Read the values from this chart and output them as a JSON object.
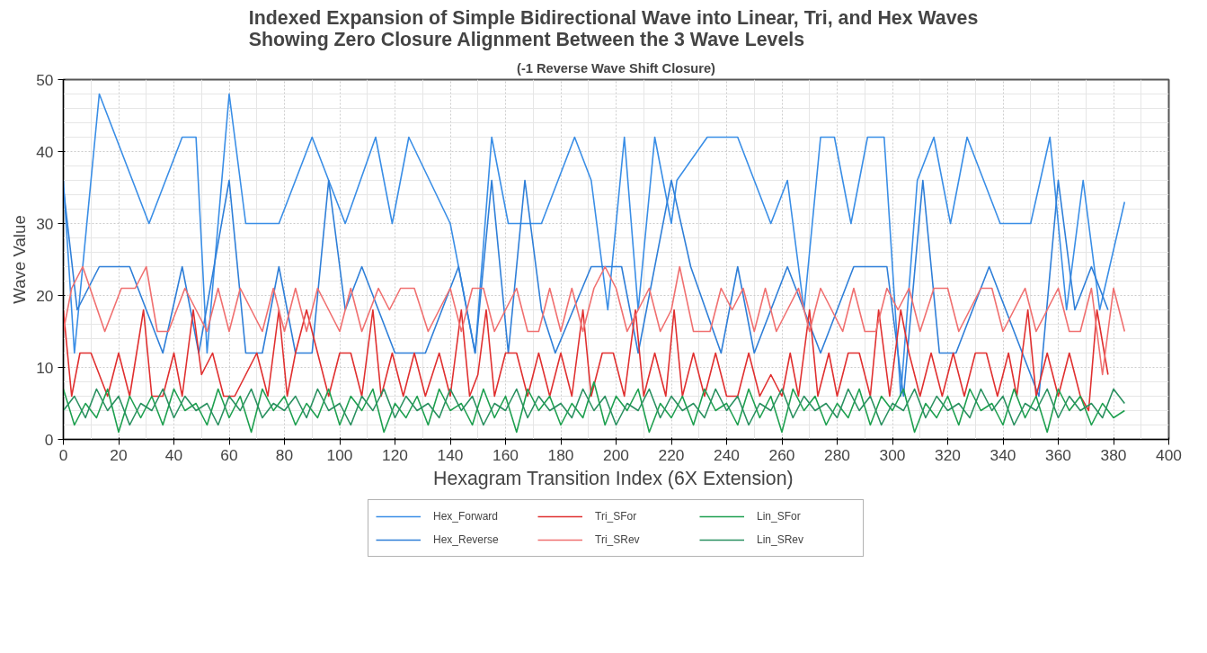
{
  "chart_data": {
    "type": "line",
    "title": "Indexed Expansion of Simple Bidirectional Wave into Linear, Tri, and Hex  Waves\nShowing Zero Closure Alignment Between the 3 Wave Levels",
    "subtitle": "(-1 Reverse Wave Shift Closure)",
    "xlabel": "Hexagram Transition Index  (6X Extension)",
    "ylabel": "Wave Value",
    "xlim": [
      0,
      400
    ],
    "xticks": [
      0,
      20,
      40,
      60,
      80,
      100,
      120,
      140,
      160,
      180,
      200,
      220,
      240,
      260,
      280,
      300,
      320,
      340,
      360,
      380,
      400
    ],
    "ylim": [
      0,
      50
    ],
    "yticks": [
      0,
      10,
      20,
      30,
      40,
      50
    ],
    "grid": true,
    "legend": "bottom",
    "line_style": "solid",
    "series": [
      {
        "name": "Hex_Forward",
        "color": "#3a8ee6",
        "x": [
          0,
          4,
          13,
          31,
          43,
          48,
          52,
          60,
          66,
          78,
          90,
          102,
          113,
          119,
          125,
          140,
          149,
          155,
          161,
          173,
          185,
          191,
          197,
          203,
          208,
          214,
          220,
          222,
          233,
          244,
          256,
          262,
          268,
          274,
          279,
          285,
          291,
          297,
          303,
          309,
          315,
          321,
          327,
          339,
          350,
          357,
          363,
          369,
          375,
          384
        ],
        "values": [
          36,
          12,
          48,
          30,
          42,
          42,
          12,
          48,
          30,
          30,
          42,
          30,
          42,
          30,
          42,
          30,
          12,
          42,
          30,
          30,
          42,
          36,
          18,
          42,
          18,
          42,
          30,
          36,
          42,
          42,
          30,
          36,
          18,
          42,
          42,
          30,
          42,
          42,
          6,
          36,
          42,
          30,
          42,
          30,
          30,
          42,
          18,
          36,
          18,
          33
        ]
      },
      {
        "name": "Hex_Reverse",
        "color": "#2f7fd8",
        "x": [
          0,
          5,
          13,
          24,
          36,
          43,
          49,
          60,
          66,
          72,
          78,
          84,
          90,
          96,
          102,
          108,
          120,
          131,
          143,
          149,
          155,
          161,
          167,
          173,
          178,
          191,
          202,
          208,
          220,
          227,
          238,
          244,
          250,
          262,
          268,
          274,
          286,
          298,
          304,
          311,
          317,
          323,
          335,
          347,
          353,
          360,
          366,
          372,
          378
        ],
        "values": [
          35,
          18,
          24,
          24,
          12,
          24,
          12,
          36,
          12,
          12,
          24,
          12,
          12,
          36,
          18,
          24,
          12,
          12,
          24,
          12,
          36,
          12,
          36,
          18,
          12,
          24,
          24,
          12,
          36,
          24,
          12,
          24,
          12,
          24,
          18,
          12,
          24,
          24,
          6,
          36,
          12,
          12,
          24,
          12,
          6,
          36,
          18,
          24,
          18
        ]
      },
      {
        "name": "Tri_SFor",
        "color": "#e03030",
        "x": [
          0,
          3,
          6,
          10,
          16,
          20,
          24,
          29,
          32,
          36,
          40,
          43,
          47,
          50,
          54,
          58,
          62,
          66,
          70,
          74,
          78,
          81,
          84,
          88,
          92,
          96,
          100,
          104,
          108,
          112,
          115,
          119,
          123,
          127,
          131,
          136,
          140,
          144,
          147,
          150,
          153,
          156,
          160,
          164,
          168,
          172,
          176,
          180,
          184,
          188,
          191,
          195,
          199,
          203,
          207,
          210,
          214,
          218,
          221,
          224,
          228,
          232,
          236,
          240,
          244,
          248,
          252,
          256,
          260,
          263,
          266,
          270,
          273,
          277,
          280,
          284,
          288,
          292,
          295,
          299,
          303,
          306,
          310,
          314,
          318,
          322,
          326,
          330,
          334,
          338,
          342,
          345,
          349,
          352,
          356,
          360,
          364,
          368,
          371,
          374,
          378
        ],
        "values": [
          18,
          6,
          12,
          12,
          6,
          12,
          6,
          18,
          6,
          6,
          12,
          6,
          18,
          9,
          12,
          6,
          6,
          9,
          12,
          6,
          18,
          6,
          12,
          18,
          12,
          6,
          12,
          12,
          6,
          18,
          6,
          12,
          6,
          12,
          6,
          12,
          6,
          18,
          6,
          9,
          18,
          6,
          12,
          12,
          6,
          12,
          6,
          12,
          6,
          18,
          6,
          12,
          12,
          6,
          18,
          6,
          12,
          6,
          18,
          6,
          12,
          6,
          12,
          6,
          6,
          12,
          6,
          9,
          6,
          12,
          6,
          18,
          6,
          12,
          6,
          12,
          12,
          6,
          18,
          6,
          18,
          12,
          6,
          12,
          6,
          12,
          6,
          12,
          12,
          6,
          12,
          6,
          18,
          6,
          12,
          6,
          12,
          6,
          4,
          18,
          9
        ]
      },
      {
        "name": "Tri_SRev",
        "color": "#f07070",
        "x": [
          0,
          3,
          7,
          15,
          21,
          26,
          30,
          34,
          38,
          44,
          48,
          52,
          56,
          60,
          64,
          68,
          72,
          76,
          80,
          84,
          88,
          92,
          96,
          100,
          104,
          108,
          114,
          118,
          122,
          127,
          132,
          136,
          140,
          144,
          148,
          152,
          156,
          160,
          164,
          168,
          172,
          176,
          180,
          184,
          188,
          192,
          196,
          200,
          204,
          208,
          212,
          216,
          220,
          223,
          228,
          234,
          238,
          242,
          246,
          250,
          254,
          258,
          262,
          266,
          270,
          274,
          278,
          282,
          286,
          290,
          294,
          298,
          302,
          306,
          310,
          315,
          320,
          324,
          328,
          332,
          336,
          340,
          344,
          348,
          352,
          356,
          360,
          364,
          368,
          372,
          376,
          380,
          384
        ],
        "values": [
          15,
          21,
          24,
          15,
          21,
          21,
          24,
          15,
          15,
          21,
          18,
          15,
          21,
          15,
          21,
          18,
          15,
          21,
          15,
          21,
          15,
          21,
          18,
          15,
          21,
          15,
          21,
          18,
          21,
          21,
          15,
          18,
          21,
          15,
          21,
          21,
          15,
          18,
          21,
          15,
          15,
          21,
          15,
          21,
          15,
          21,
          24,
          21,
          15,
          18,
          21,
          15,
          18,
          24,
          15,
          15,
          21,
          18,
          21,
          15,
          21,
          15,
          18,
          21,
          15,
          21,
          18,
          15,
          21,
          15,
          15,
          21,
          18,
          21,
          15,
          21,
          21,
          15,
          18,
          21,
          21,
          15,
          18,
          21,
          15,
          18,
          21,
          15,
          15,
          21,
          9,
          21,
          15
        ]
      },
      {
        "name": "Lin_SFor",
        "color": "#1fa050",
        "x": [
          0,
          4,
          8,
          12,
          16,
          20,
          24,
          28,
          32,
          36,
          40,
          44,
          48,
          52,
          56,
          60,
          64,
          68,
          72,
          76,
          80,
          84,
          88,
          92,
          96,
          100,
          104,
          108,
          112,
          116,
          120,
          124,
          128,
          132,
          136,
          140,
          144,
          148,
          152,
          156,
          160,
          164,
          168,
          172,
          176,
          180,
          184,
          188,
          192,
          196,
          200,
          204,
          208,
          212,
          216,
          220,
          224,
          228,
          232,
          236,
          240,
          244,
          248,
          252,
          256,
          260,
          264,
          268,
          272,
          276,
          280,
          284,
          288,
          292,
          296,
          300,
          304,
          308,
          312,
          316,
          320,
          324,
          328,
          332,
          336,
          340,
          344,
          348,
          352,
          356,
          360,
          364,
          368,
          372,
          376,
          380,
          384
        ],
        "values": [
          7,
          2,
          5,
          3,
          7,
          1,
          6,
          3,
          6,
          2,
          7,
          4,
          5,
          2,
          7,
          3,
          6,
          1,
          7,
          4,
          6,
          2,
          5,
          3,
          7,
          2,
          6,
          4,
          7,
          1,
          5,
          3,
          6,
          2,
          7,
          4,
          5,
          2,
          7,
          3,
          6,
          1,
          7,
          4,
          6,
          2,
          5,
          3,
          8,
          2,
          6,
          4,
          7,
          1,
          5,
          3,
          6,
          2,
          7,
          4,
          5,
          2,
          7,
          3,
          6,
          1,
          7,
          4,
          6,
          2,
          5,
          3,
          7,
          2,
          6,
          4,
          7,
          1,
          5,
          3,
          6,
          2,
          7,
          4,
          5,
          2,
          7,
          3,
          6,
          1,
          7,
          4,
          6,
          2,
          5,
          3,
          4
        ]
      },
      {
        "name": "Lin_SRev",
        "color": "#2a9060",
        "x": [
          0,
          4,
          8,
          12,
          16,
          20,
          24,
          28,
          32,
          36,
          40,
          44,
          48,
          52,
          56,
          60,
          64,
          68,
          72,
          76,
          80,
          84,
          88,
          92,
          96,
          100,
          104,
          108,
          112,
          116,
          120,
          124,
          128,
          132,
          136,
          140,
          144,
          148,
          152,
          156,
          160,
          164,
          168,
          172,
          176,
          180,
          184,
          188,
          192,
          196,
          200,
          204,
          208,
          212,
          216,
          220,
          224,
          228,
          232,
          236,
          240,
          244,
          248,
          252,
          256,
          260,
          264,
          268,
          272,
          276,
          280,
          284,
          288,
          292,
          296,
          300,
          304,
          308,
          312,
          316,
          320,
          324,
          328,
          332,
          336,
          340,
          344,
          348,
          352,
          356,
          360,
          364,
          368,
          372,
          376,
          380,
          384
        ],
        "values": [
          4,
          6,
          3,
          7,
          4,
          6,
          2,
          5,
          4,
          7,
          3,
          6,
          4,
          5,
          2,
          6,
          4,
          7,
          3,
          5,
          4,
          6,
          3,
          7,
          4,
          5,
          2,
          6,
          4,
          7,
          3,
          6,
          4,
          5,
          3,
          7,
          4,
          6,
          2,
          5,
          4,
          7,
          3,
          6,
          4,
          5,
          3,
          7,
          4,
          6,
          2,
          5,
          4,
          7,
          3,
          6,
          4,
          5,
          3,
          7,
          4,
          6,
          2,
          5,
          4,
          7,
          3,
          6,
          4,
          5,
          3,
          7,
          4,
          6,
          2,
          5,
          4,
          7,
          3,
          6,
          4,
          5,
          3,
          7,
          4,
          6,
          2,
          5,
          4,
          7,
          3,
          6,
          4,
          5,
          3,
          7,
          5
        ]
      }
    ]
  }
}
